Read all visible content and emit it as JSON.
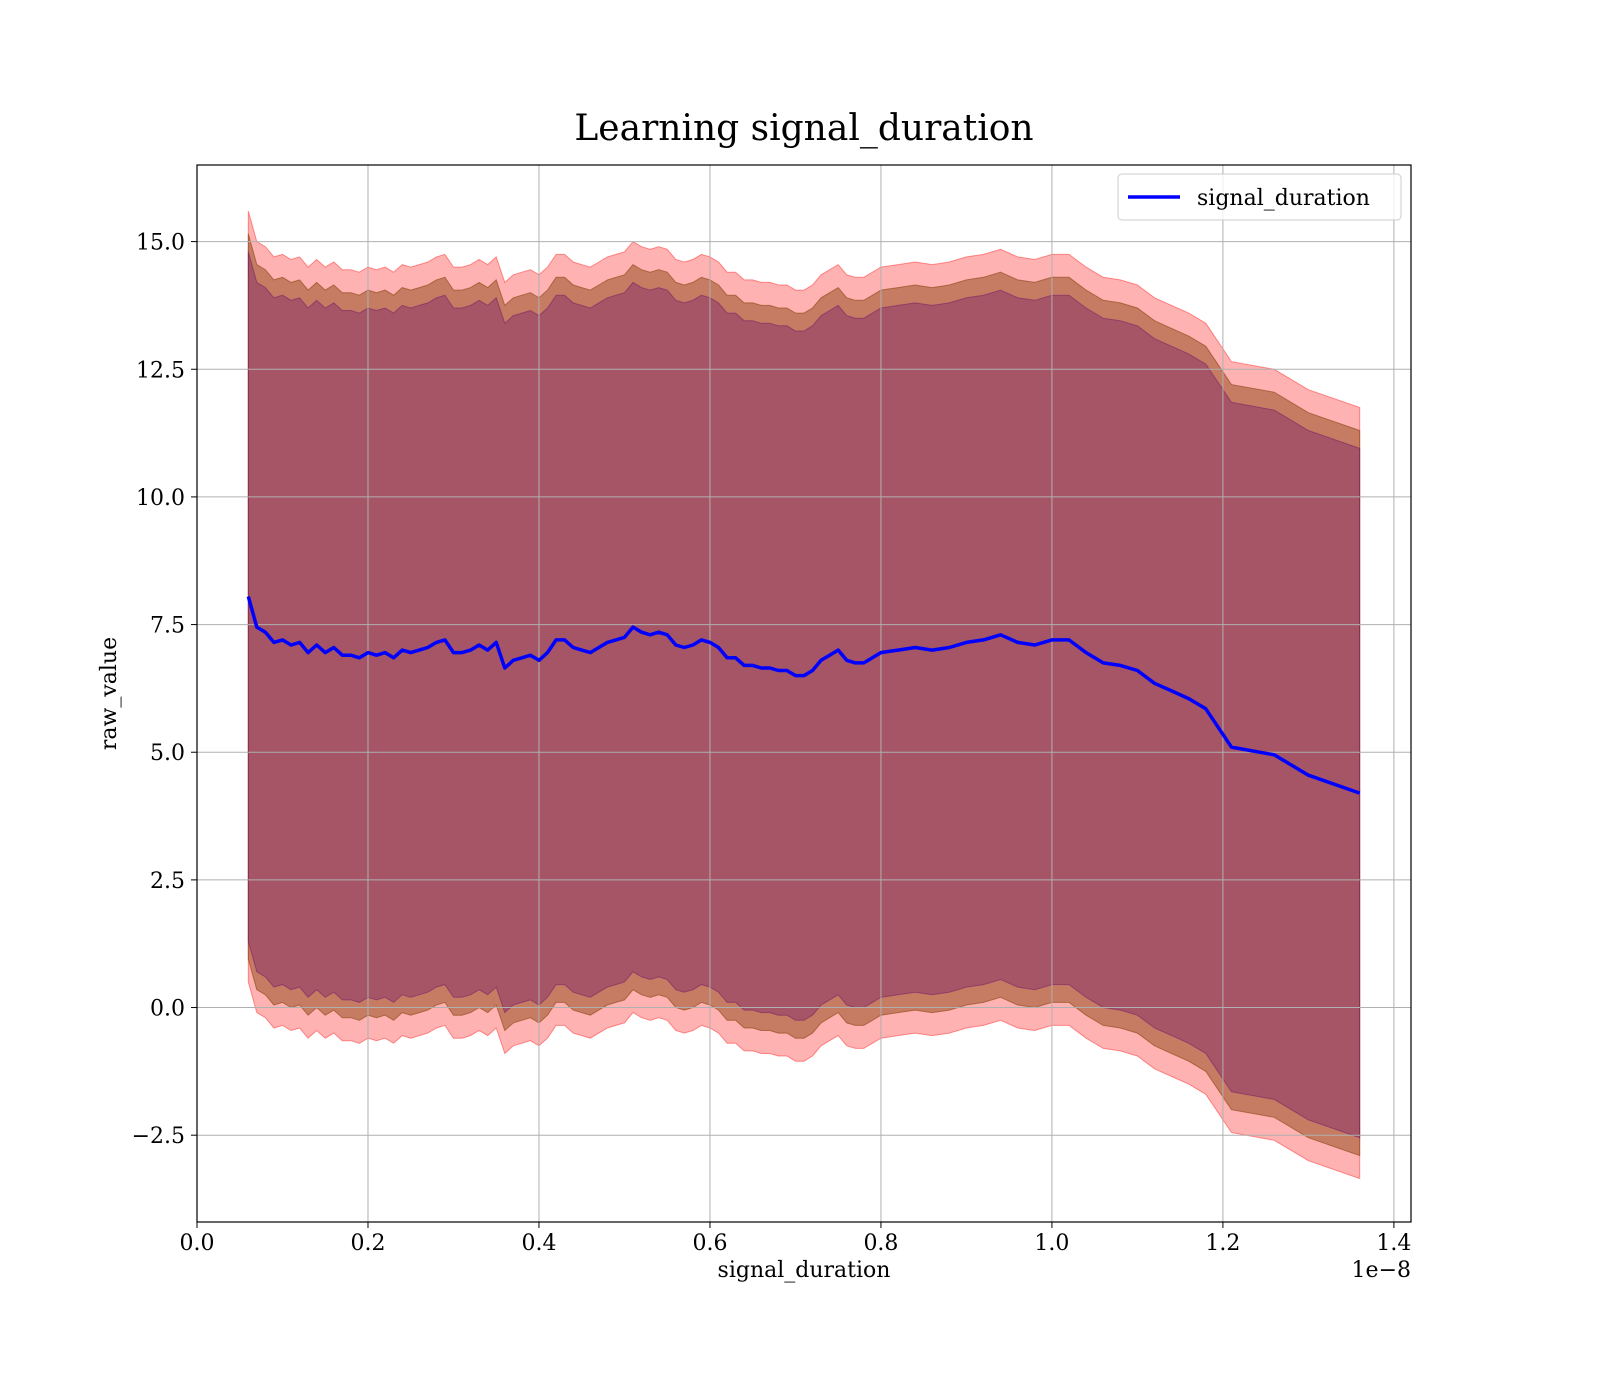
{
  "chart_data": {
    "type": "line",
    "title": "Learning signal_duration",
    "xlabel": "signal_duration",
    "ylabel": "raw_value",
    "x_offset_text": "1e−8",
    "xlim": [
      0.0,
      1.42
    ],
    "ylim": [
      -4.2,
      16.5
    ],
    "x_ticks": [
      0.0,
      0.2,
      0.4,
      0.6,
      0.8,
      1.0,
      1.2,
      1.4
    ],
    "x_tick_labels": [
      "0.0",
      "0.2",
      "0.4",
      "0.6",
      "0.8",
      "1.0",
      "1.2",
      "1.4"
    ],
    "y_ticks": [
      -2.5,
      0.0,
      2.5,
      5.0,
      7.5,
      10.0,
      12.5,
      15.0
    ],
    "y_tick_labels": [
      "−2.5",
      "0.0",
      "2.5",
      "5.0",
      "7.5",
      "10.0",
      "12.5",
      "15.0"
    ],
    "grid": true,
    "legend_position": "top-right",
    "colors": {
      "line": "#0000ff",
      "outer_band": "#ff0000",
      "inner_band": "#8b4513",
      "core_band": "#6a0d6a"
    },
    "x": [
      0.06,
      0.07,
      0.08,
      0.09,
      0.1,
      0.11,
      0.12,
      0.13,
      0.14,
      0.15,
      0.16,
      0.17,
      0.18,
      0.19,
      0.2,
      0.21,
      0.22,
      0.23,
      0.24,
      0.25,
      0.26,
      0.27,
      0.28,
      0.29,
      0.3,
      0.31,
      0.32,
      0.33,
      0.34,
      0.35,
      0.36,
      0.37,
      0.38,
      0.39,
      0.4,
      0.41,
      0.42,
      0.43,
      0.44,
      0.45,
      0.46,
      0.47,
      0.48,
      0.49,
      0.5,
      0.51,
      0.52,
      0.53,
      0.54,
      0.55,
      0.56,
      0.57,
      0.58,
      0.59,
      0.6,
      0.61,
      0.62,
      0.63,
      0.64,
      0.65,
      0.66,
      0.67,
      0.68,
      0.69,
      0.7,
      0.71,
      0.72,
      0.73,
      0.74,
      0.75,
      0.76,
      0.77,
      0.78,
      0.79,
      0.8,
      0.82,
      0.84,
      0.86,
      0.88,
      0.9,
      0.92,
      0.94,
      0.96,
      0.98,
      1.0,
      1.02,
      1.04,
      1.06,
      1.08,
      1.1,
      1.12,
      1.14,
      1.16,
      1.18,
      1.21,
      1.26,
      1.3,
      1.36
    ],
    "series": [
      {
        "name": "signal_duration",
        "values": [
          8.05,
          7.45,
          7.35,
          7.15,
          7.2,
          7.1,
          7.15,
          6.95,
          7.1,
          6.95,
          7.05,
          6.9,
          6.9,
          6.85,
          6.95,
          6.9,
          6.95,
          6.85,
          7.0,
          6.95,
          7.0,
          7.05,
          7.15,
          7.2,
          6.95,
          6.95,
          7.0,
          7.1,
          7.0,
          7.15,
          6.65,
          6.8,
          6.85,
          6.9,
          6.8,
          6.95,
          7.2,
          7.2,
          7.05,
          7.0,
          6.95,
          7.05,
          7.15,
          7.2,
          7.25,
          7.45,
          7.35,
          7.3,
          7.35,
          7.3,
          7.1,
          7.05,
          7.1,
          7.2,
          7.15,
          7.05,
          6.85,
          6.85,
          6.7,
          6.7,
          6.65,
          6.65,
          6.6,
          6.6,
          6.5,
          6.5,
          6.6,
          6.8,
          6.9,
          7.0,
          6.8,
          6.75,
          6.75,
          6.85,
          6.95,
          7.0,
          7.05,
          7.0,
          7.05,
          7.15,
          7.2,
          7.3,
          7.15,
          7.1,
          7.2,
          7.2,
          6.95,
          6.75,
          6.7,
          6.6,
          6.35,
          6.2,
          6.05,
          5.85,
          5.1,
          4.95,
          4.55,
          4.2
        ]
      }
    ],
    "bands": [
      {
        "name": "outer",
        "half_width": 7.55
      },
      {
        "name": "inner",
        "half_width": 7.1
      },
      {
        "name": "core",
        "half_width": 6.75
      }
    ]
  }
}
